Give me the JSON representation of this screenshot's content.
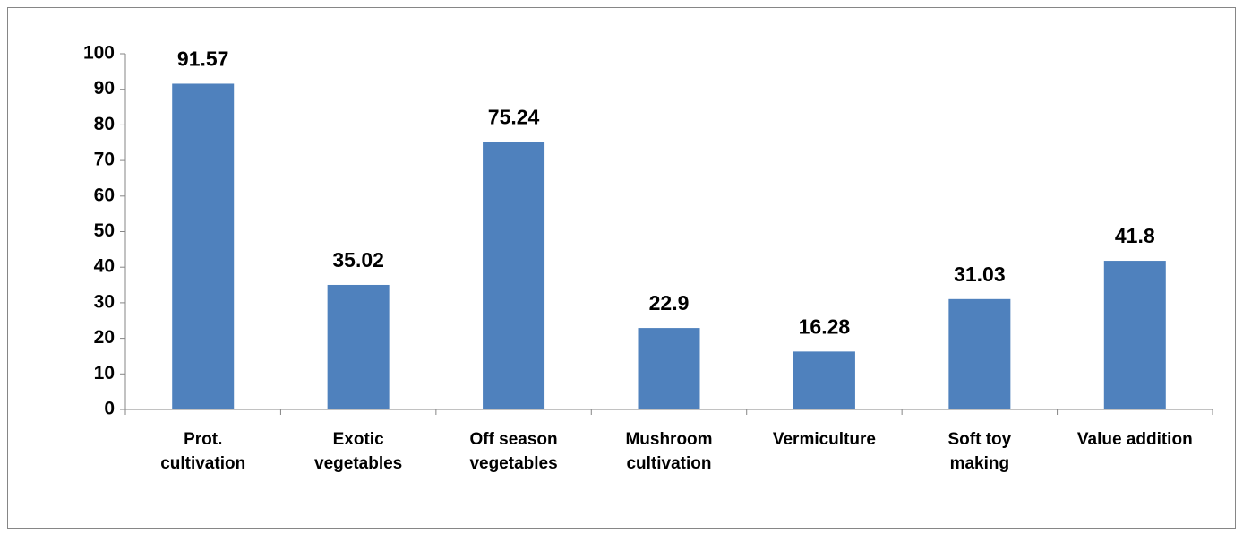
{
  "chart_data": {
    "type": "bar",
    "categories": [
      "Prot.\ncultivation",
      "Exotic\nvegetables",
      "Off season\nvegetables",
      "Mushroom\ncultivation",
      "Vermiculture",
      "Soft toy\nmaking",
      "Value addition"
    ],
    "values": [
      91.57,
      35.02,
      75.24,
      22.9,
      16.28,
      31.03,
      41.8
    ],
    "color": "#4f81bd",
    "ylim": [
      0,
      100
    ],
    "yticks": [
      0,
      10,
      20,
      30,
      40,
      50,
      60,
      70,
      80,
      90,
      100
    ],
    "grid": false
  }
}
